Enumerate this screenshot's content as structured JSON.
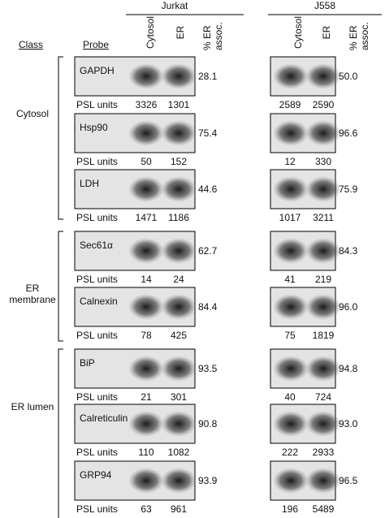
{
  "header": {
    "class": "Class",
    "probe": "Probe",
    "jurkat": {
      "title": "Jurkat",
      "columns": [
        "Cytosol",
        "ER",
        "% ER assoc."
      ]
    },
    "j558": {
      "title": "J558",
      "columns": [
        "Cytosol",
        "ER",
        "% ER assoc."
      ]
    }
  },
  "groups": [
    {
      "class": "Cytosol",
      "rows": [
        {
          "probe": "GAPDH",
          "psl_label": "PSL units",
          "jurkat": {
            "cytosol": 3326,
            "er": 1301,
            "pct": 28.1
          },
          "j558": {
            "cytosol": 2589,
            "er": 2590,
            "pct": "50.0"
          }
        },
        {
          "probe": "Hsp90",
          "psl_label": "PSL units",
          "jurkat": {
            "cytosol": 50,
            "er": 152,
            "pct": 75.4
          },
          "j558": {
            "cytosol": 12,
            "er": 330,
            "pct": 96.6
          }
        },
        {
          "probe": "LDH",
          "psl_label": "PSL units",
          "jurkat": {
            "cytosol": 1471,
            "er": 1186,
            "pct": 44.6
          },
          "j558": {
            "cytosol": 1017,
            "er": 3211,
            "pct": 75.9
          }
        }
      ]
    },
    {
      "class": "ER membrane",
      "rows": [
        {
          "probe": "Sec61α",
          "psl_label": "PSL units",
          "jurkat": {
            "cytosol": 14,
            "er": 24,
            "pct": 62.7
          },
          "j558": {
            "cytosol": 41,
            "er": 219,
            "pct": 84.3
          }
        },
        {
          "probe": "Calnexin",
          "psl_label": "PSL units",
          "jurkat": {
            "cytosol": 78,
            "er": 425,
            "pct": 84.4
          },
          "j558": {
            "cytosol": 75,
            "er": 1819,
            "pct": "96.0"
          }
        }
      ]
    },
    {
      "class": "ER lumen",
      "rows": [
        {
          "probe": "BiP",
          "psl_label": "PSL units",
          "jurkat": {
            "cytosol": 21,
            "er": 301,
            "pct": 93.5
          },
          "j558": {
            "cytosol": 40,
            "er": 724,
            "pct": 94.8
          }
        },
        {
          "probe": "Calreticulin",
          "psl_label": "PSL units",
          "jurkat": {
            "cytosol": 110,
            "er": 1082,
            "pct": 90.8
          },
          "j558": {
            "cytosol": 222,
            "er": 2933,
            "pct": "93.0"
          }
        },
        {
          "probe": "GRP94",
          "psl_label": "PSL units",
          "jurkat": {
            "cytosol": 63,
            "er": 961,
            "pct": 93.9
          },
          "j558": {
            "cytosol": 196,
            "er": 5489,
            "pct": 96.5
          }
        }
      ]
    }
  ]
}
